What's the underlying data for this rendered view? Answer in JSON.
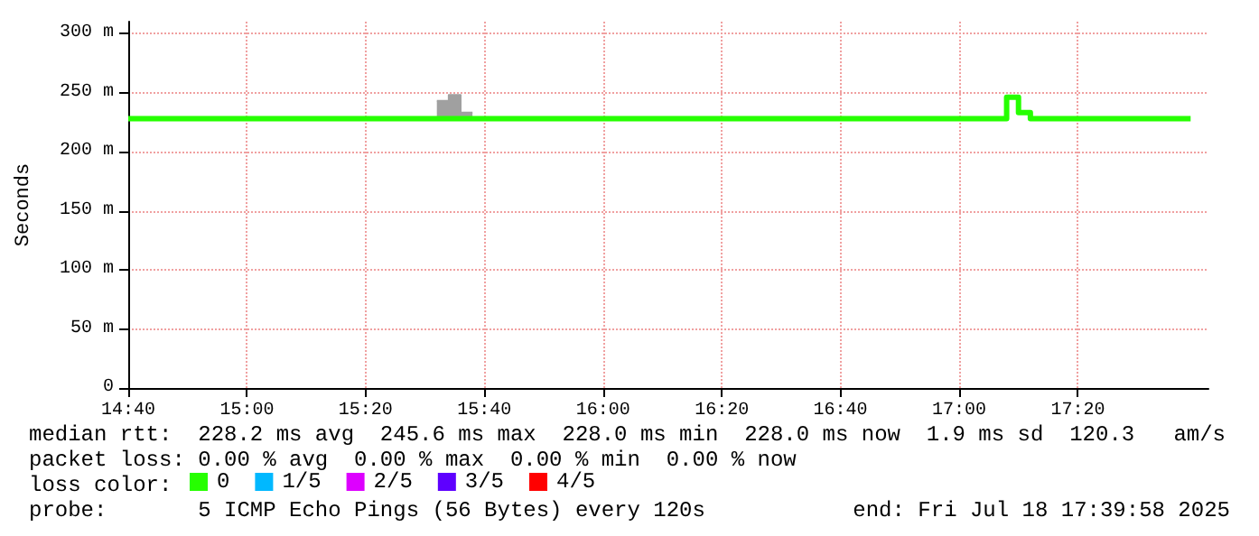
{
  "chart_data": {
    "type": "step",
    "ylabel": "Seconds",
    "xlim": [
      "2025-07-18T14:40",
      "2025-07-18T17:42"
    ],
    "xticks": [
      {
        "value": "2025-07-18T14:40",
        "label": "14:40"
      },
      {
        "value": "2025-07-18T15:00",
        "label": "15:00"
      },
      {
        "value": "2025-07-18T15:20",
        "label": "15:20"
      },
      {
        "value": "2025-07-18T15:40",
        "label": "15:40"
      },
      {
        "value": "2025-07-18T16:00",
        "label": "16:00"
      },
      {
        "value": "2025-07-18T16:20",
        "label": "16:20"
      },
      {
        "value": "2025-07-18T16:40",
        "label": "16:40"
      },
      {
        "value": "2025-07-18T17:00",
        "label": "17:00"
      },
      {
        "value": "2025-07-18T17:20",
        "label": "17:20"
      }
    ],
    "ylim": [
      0,
      310
    ],
    "yticks": [
      0,
      {
        "value": 50,
        "label": "50 m"
      },
      {
        "value": 100,
        "label": "100 m"
      },
      {
        "value": 150,
        "label": "150 m"
      },
      {
        "value": 200,
        "label": "200 m"
      },
      {
        "value": 250,
        "label": "250 m"
      },
      {
        "value": 300,
        "label": "300 m"
      }
    ],
    "grid": true,
    "legend": "bottom",
    "legend_title": "loss color:",
    "marker": "none",
    "series": [
      {
        "type": "line",
        "color": "#a0a0a0",
        "x": [
          "2025-07-18T15:32",
          "2025-07-18T15:34",
          "2025-07-18T15:34",
          "2025-07-18T15:36",
          "2025-07-18T15:36",
          "2025-07-18T15:38"
        ],
        "values": [
          243,
          243,
          248,
          248,
          233,
          233
        ],
        "lower": [
          228,
          228,
          228,
          228,
          228,
          228
        ],
        "upper": [
          243,
          243,
          248,
          248,
          233,
          233
        ]
      },
      {
        "name": "0",
        "color": "#26ff00",
        "x": [
          "2025-07-18T14:40",
          "2025-07-18T17:08",
          "2025-07-18T17:10",
          "2025-07-18T17:12",
          "2025-07-18T17:39"
        ],
        "values": [
          228,
          246,
          233,
          228,
          228
        ]
      },
      {
        "name": "1/5",
        "color": "#00b8ff"
      },
      {
        "name": "2/5",
        "color": "#dd00ff"
      },
      {
        "name": "3/5",
        "color": "#5e00ff"
      },
      {
        "name": "4/5",
        "color": "#ff0000"
      }
    ],
    "annotations": [
      "median rtt:  228.2 ms avg  245.6 ms max  228.0 ms min  228.0 ms now  1.9 ms sd  120.3   am/s",
      "packet loss: 0.00 % avg  0.00 % max  0.00 % min  0.00 % now",
      "probe:       5 ICMP Echo Pings (56 Bytes) every 120s",
      "end: Fri Jul 18 17:39:58 2025"
    ]
  }
}
